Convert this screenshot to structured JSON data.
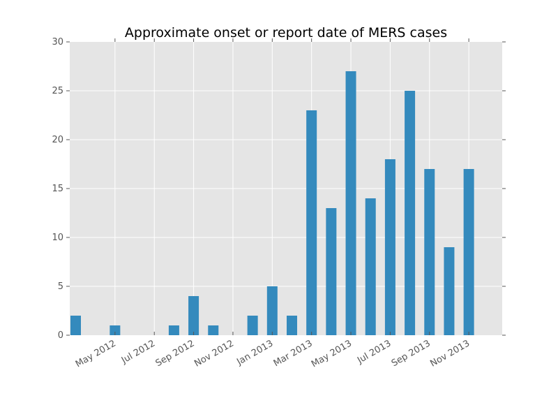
{
  "chart_data": {
    "type": "bar",
    "title": "Approximate onset or report date of MERS cases",
    "xlabel": "",
    "ylabel": "",
    "x": [
      "2012-03",
      "2012-04",
      "2012-05",
      "2012-06",
      "2012-07",
      "2012-08",
      "2012-09",
      "2012-10",
      "2012-11",
      "2012-12",
      "2013-01",
      "2013-02",
      "2013-03",
      "2013-04",
      "2013-05",
      "2013-06",
      "2013-07",
      "2013-08",
      "2013-09",
      "2013-10",
      "2013-11",
      "2013-12"
    ],
    "values": [
      2,
      0,
      1,
      0,
      0,
      1,
      4,
      1,
      0,
      2,
      5,
      2,
      23,
      13,
      27,
      14,
      18,
      25,
      17,
      9,
      17,
      0
    ],
    "ylim": [
      0,
      30
    ],
    "yticks": [
      0,
      5,
      10,
      15,
      20,
      25,
      30
    ],
    "xtick_labels": [
      "May 2012",
      "Jul 2012",
      "Sep 2012",
      "Nov 2012",
      "Jan 2013",
      "Mar 2013",
      "May 2013",
      "Jul 2013",
      "Sep 2013",
      "Nov 2013"
    ],
    "xtick_months": [
      "2012-05",
      "2012-07",
      "2012-09",
      "2012-11",
      "2013-01",
      "2013-03",
      "2013-05",
      "2013-07",
      "2013-09",
      "2013-11"
    ],
    "grid": true,
    "colors": {
      "bar": "#348abd",
      "plot_background": "#e5e5e5",
      "grid": "#ffffff",
      "tick_text": "#555555"
    }
  }
}
